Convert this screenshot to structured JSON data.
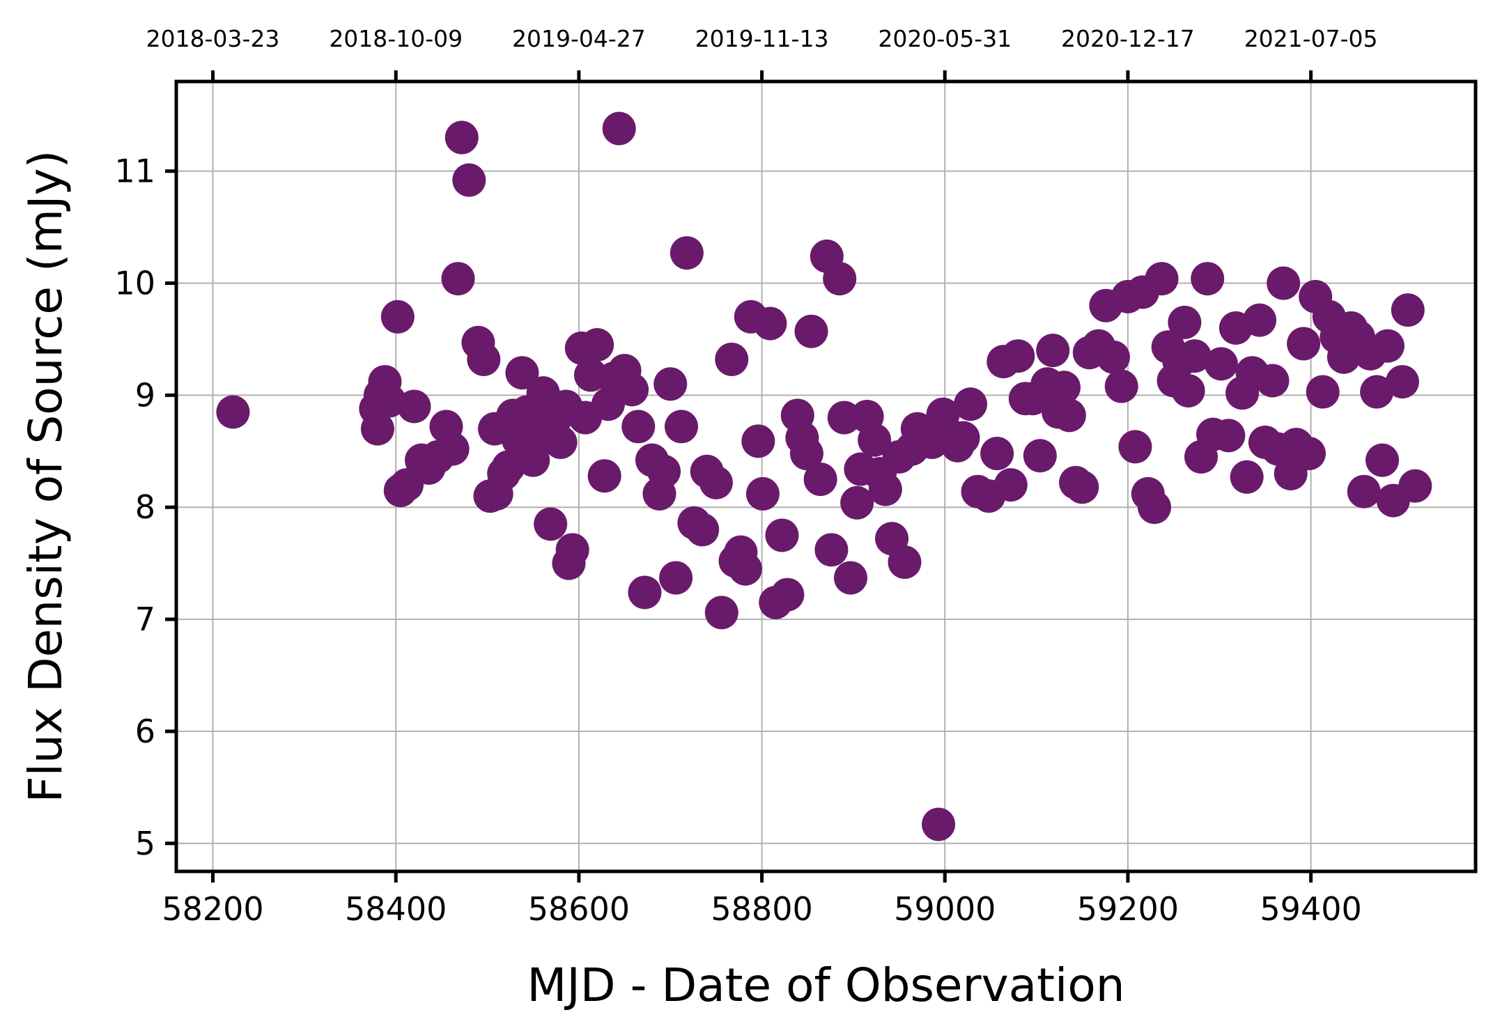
{
  "chart_data": {
    "type": "scatter",
    "xlabel": "MJD - Date of Observation",
    "ylabel": "Flux Density of Source (mJy)",
    "xlim": [
      58160,
      59580
    ],
    "ylim": [
      4.75,
      11.8
    ],
    "grid": true,
    "marker_color": "#6a1a6b",
    "x_ticks": [
      {
        "value": 58200,
        "label": "58200"
      },
      {
        "value": 58400,
        "label": "58400"
      },
      {
        "value": 58600,
        "label": "58600"
      },
      {
        "value": 58800,
        "label": "58800"
      },
      {
        "value": 59000,
        "label": "59000"
      },
      {
        "value": 59200,
        "label": "59200"
      },
      {
        "value": 59400,
        "label": "59400"
      }
    ],
    "y_ticks": [
      {
        "value": 5,
        "label": "5"
      },
      {
        "value": 6,
        "label": "6"
      },
      {
        "value": 7,
        "label": "7"
      },
      {
        "value": 8,
        "label": "8"
      },
      {
        "value": 9,
        "label": "9"
      },
      {
        "value": 10,
        "label": "10"
      },
      {
        "value": 11,
        "label": "11"
      }
    ],
    "top_ticks": [
      {
        "value": 58200,
        "label": "2018-03-23"
      },
      {
        "value": 58400,
        "label": "2018-10-09"
      },
      {
        "value": 58600,
        "label": "2019-04-27"
      },
      {
        "value": 58800,
        "label": "2019-11-13"
      },
      {
        "value": 59000,
        "label": "2020-05-31"
      },
      {
        "value": 59200,
        "label": "2020-12-17"
      },
      {
        "value": 59400,
        "label": "2021-07-05"
      }
    ],
    "points": [
      [
        58222,
        8.85
      ],
      [
        58378,
        8.88
      ],
      [
        58383,
        9.0
      ],
      [
        58388,
        9.12
      ],
      [
        58393,
        8.95
      ],
      [
        58380,
        8.7
      ],
      [
        58402,
        9.7
      ],
      [
        58405,
        8.15
      ],
      [
        58412,
        8.2
      ],
      [
        58420,
        8.9
      ],
      [
        58428,
        8.42
      ],
      [
        58436,
        8.35
      ],
      [
        58446,
        8.45
      ],
      [
        58455,
        8.72
      ],
      [
        58462,
        8.52
      ],
      [
        58468,
        10.04
      ],
      [
        58472,
        11.3
      ],
      [
        58480,
        10.92
      ],
      [
        58490,
        9.47
      ],
      [
        58496,
        9.32
      ],
      [
        58503,
        8.1
      ],
      [
        58510,
        8.12
      ],
      [
        58508,
        8.7
      ],
      [
        58518,
        8.3
      ],
      [
        58523,
        8.36
      ],
      [
        58528,
        8.82
      ],
      [
        58534,
        8.6
      ],
      [
        58538,
        9.2
      ],
      [
        58543,
        8.85
      ],
      [
        58550,
        8.42
      ],
      [
        58556,
        8.75
      ],
      [
        58561,
        9.02
      ],
      [
        58565,
        8.65
      ],
      [
        58569,
        7.85
      ],
      [
        58575,
        8.8
      ],
      [
        58580,
        8.58
      ],
      [
        58586,
        8.9
      ],
      [
        58589,
        7.5
      ],
      [
        58593,
        7.62
      ],
      [
        58603,
        9.42
      ],
      [
        58607,
        8.8
      ],
      [
        58613,
        9.18
      ],
      [
        58620,
        9.45
      ],
      [
        58628,
        8.28
      ],
      [
        58632,
        8.92
      ],
      [
        58638,
        9.15
      ],
      [
        58644,
        11.38
      ],
      [
        58650,
        9.22
      ],
      [
        58658,
        9.05
      ],
      [
        58665,
        8.72
      ],
      [
        58672,
        7.24
      ],
      [
        58680,
        8.42
      ],
      [
        58688,
        8.12
      ],
      [
        58693,
        8.32
      ],
      [
        58700,
        9.1
      ],
      [
        58706,
        7.37
      ],
      [
        58712,
        8.72
      ],
      [
        58718,
        10.27
      ],
      [
        58726,
        7.86
      ],
      [
        58735,
        7.8
      ],
      [
        58740,
        8.32
      ],
      [
        58750,
        8.22
      ],
      [
        58756,
        7.06
      ],
      [
        58767,
        9.32
      ],
      [
        58771,
        7.52
      ],
      [
        58777,
        7.6
      ],
      [
        58782,
        7.45
      ],
      [
        58788,
        9.7
      ],
      [
        58796,
        8.59
      ],
      [
        58801,
        8.12
      ],
      [
        58809,
        9.64
      ],
      [
        58815,
        7.15
      ],
      [
        58822,
        7.75
      ],
      [
        58828,
        7.22
      ],
      [
        58839,
        8.82
      ],
      [
        58844,
        8.62
      ],
      [
        58849,
        8.48
      ],
      [
        58854,
        9.57
      ],
      [
        58864,
        8.25
      ],
      [
        58871,
        10.24
      ],
      [
        58876,
        7.62
      ],
      [
        58885,
        10.04
      ],
      [
        58890,
        8.8
      ],
      [
        58897,
        7.37
      ],
      [
        58904,
        8.04
      ],
      [
        58908,
        8.34
      ],
      [
        58915,
        8.81
      ],
      [
        58923,
        8.6
      ],
      [
        58929,
        8.3
      ],
      [
        58935,
        8.16
      ],
      [
        58942,
        7.72
      ],
      [
        58950,
        8.45
      ],
      [
        58956,
        7.51
      ],
      [
        58964,
        8.52
      ],
      [
        58970,
        8.7
      ],
      [
        58979,
        8.6
      ],
      [
        58986,
        8.58
      ],
      [
        58993,
        5.17
      ],
      [
        58998,
        8.83
      ],
      [
        59006,
        8.64
      ],
      [
        59014,
        8.55
      ],
      [
        59020,
        8.62
      ],
      [
        59028,
        8.92
      ],
      [
        59036,
        8.14
      ],
      [
        59048,
        8.1
      ],
      [
        59057,
        8.48
      ],
      [
        59064,
        9.3
      ],
      [
        59072,
        8.2
      ],
      [
        59080,
        9.35
      ],
      [
        59088,
        8.97
      ],
      [
        59096,
        8.97
      ],
      [
        59104,
        8.46
      ],
      [
        59112,
        9.1
      ],
      [
        59118,
        9.4
      ],
      [
        59124,
        8.85
      ],
      [
        59130,
        9.07
      ],
      [
        59136,
        8.82
      ],
      [
        59143,
        8.22
      ],
      [
        59150,
        8.18
      ],
      [
        59158,
        9.38
      ],
      [
        59168,
        9.44
      ],
      [
        59176,
        9.8
      ],
      [
        59184,
        9.34
      ],
      [
        59193,
        9.08
      ],
      [
        59200,
        9.88
      ],
      [
        59208,
        8.54
      ],
      [
        59216,
        9.92
      ],
      [
        59222,
        8.12
      ],
      [
        59229,
        8.0
      ],
      [
        59237,
        10.04
      ],
      [
        59244,
        9.43
      ],
      [
        59250,
        9.13
      ],
      [
        59256,
        9.3
      ],
      [
        59262,
        9.65
      ],
      [
        59266,
        9.04
      ],
      [
        59273,
        9.35
      ],
      [
        59280,
        8.45
      ],
      [
        59287,
        10.04
      ],
      [
        59293,
        8.65
      ],
      [
        59302,
        9.28
      ],
      [
        59310,
        8.64
      ],
      [
        59318,
        9.6
      ],
      [
        59325,
        9.02
      ],
      [
        59330,
        8.27
      ],
      [
        59336,
        9.2
      ],
      [
        59344,
        9.67
      ],
      [
        59350,
        8.58
      ],
      [
        59358,
        9.13
      ],
      [
        59364,
        8.52
      ],
      [
        59370,
        10.0
      ],
      [
        59378,
        8.3
      ],
      [
        59384,
        8.56
      ],
      [
        59392,
        9.46
      ],
      [
        59398,
        8.48
      ],
      [
        59405,
        9.88
      ],
      [
        59413,
        9.03
      ],
      [
        59420,
        9.7
      ],
      [
        59428,
        9.52
      ],
      [
        59436,
        9.34
      ],
      [
        59444,
        9.6
      ],
      [
        59452,
        9.52
      ],
      [
        59458,
        8.14
      ],
      [
        59465,
        9.37
      ],
      [
        59472,
        9.03
      ],
      [
        59478,
        8.42
      ],
      [
        59484,
        9.44
      ],
      [
        59490,
        8.06
      ],
      [
        59500,
        9.12
      ],
      [
        59506,
        9.76
      ],
      [
        59514,
        8.19
      ]
    ]
  }
}
